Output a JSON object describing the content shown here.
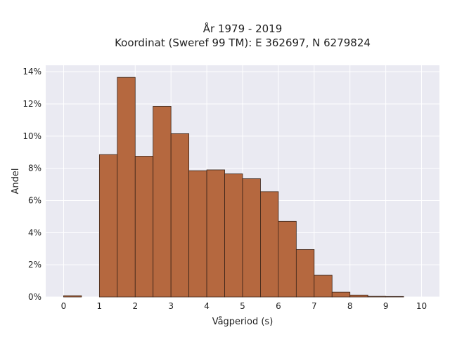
{
  "chart_data": {
    "type": "bar",
    "title_line1": "År 1979 - 2019",
    "title_line2": "Koordinat (Sweref 99 TM): E 362697, N 6279824",
    "xlabel": "Vågperiod (s)",
    "ylabel": "Andel",
    "xlim": [
      -0.5,
      10.5
    ],
    "ylim": [
      0,
      14.4
    ],
    "x_ticks": [
      0,
      1,
      2,
      3,
      4,
      5,
      6,
      7,
      8,
      9,
      10
    ],
    "y_ticks": [
      0,
      2,
      4,
      6,
      8,
      10,
      12,
      14
    ],
    "y_tick_labels": [
      "0%",
      "2%",
      "4%",
      "6%",
      "8%",
      "10%",
      "12%",
      "14%"
    ],
    "bin_width": 0.5,
    "bins": [
      {
        "x": 0.0,
        "value": 0.08
      },
      {
        "x": 0.5,
        "value": 0.0
      },
      {
        "x": 1.0,
        "value": 8.85
      },
      {
        "x": 1.5,
        "value": 13.65
      },
      {
        "x": 2.0,
        "value": 8.75
      },
      {
        "x": 2.5,
        "value": 11.85
      },
      {
        "x": 3.0,
        "value": 10.15
      },
      {
        "x": 3.5,
        "value": 7.85
      },
      {
        "x": 4.0,
        "value": 7.9
      },
      {
        "x": 4.5,
        "value": 7.65
      },
      {
        "x": 5.0,
        "value": 7.35
      },
      {
        "x": 5.5,
        "value": 6.55
      },
      {
        "x": 6.0,
        "value": 4.7
      },
      {
        "x": 6.5,
        "value": 2.95
      },
      {
        "x": 7.0,
        "value": 1.35
      },
      {
        "x": 7.5,
        "value": 0.3
      },
      {
        "x": 8.0,
        "value": 0.12
      },
      {
        "x": 8.5,
        "value": 0.04
      },
      {
        "x": 9.0,
        "value": 0.03
      },
      {
        "x": 9.5,
        "value": 0.0
      }
    ],
    "grid": true,
    "colors": {
      "bar_fill": "#b5683f",
      "bar_edge": "#3a2418",
      "plot_bg": "#eaeaf2",
      "grid": "#ffffff"
    }
  }
}
